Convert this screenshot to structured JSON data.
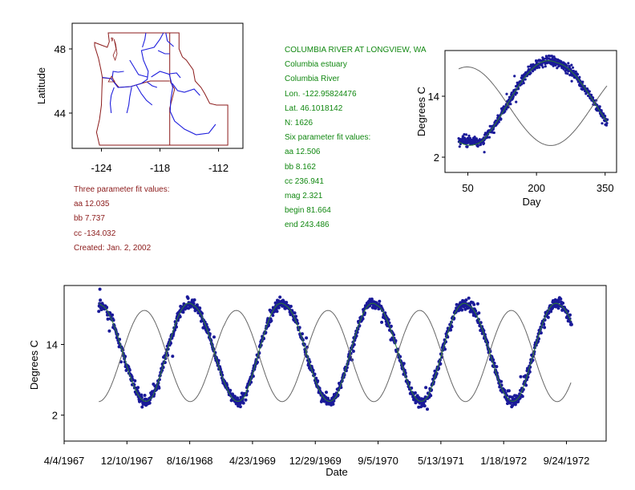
{
  "site_info": {
    "title": "COLUMBIA RIVER AT LONGVIEW, WA",
    "area": "Columbia estuary",
    "river": "Columbia River",
    "lon": "Lon. -122.95824476",
    "lat": "Lat. 46.1018142",
    "n": "N: 1626"
  },
  "six_param": {
    "header": "Six parameter fit values:",
    "aa": "aa 12.506",
    "bb": "bb 8.162",
    "cc": "cc 236.941",
    "mag": "mag 2.321",
    "begin": "begin 81.664",
    "end": "end 243.486"
  },
  "three_param": {
    "header": "Three parameter fit values:",
    "aa": "aa 12.035",
    "bb": "bb 7.737",
    "cc": "cc -134.032",
    "created": "Created:   Jan. 2, 2002"
  },
  "colors": {
    "points": "#1a1a99",
    "fit_green": "#2e7d32",
    "fit_gray": "#666666",
    "map_boundary": "#8b1a1a",
    "river": "#1f1fdd",
    "green_text": "#118811",
    "red_text": "#8b1a1a"
  },
  "chart_data": [
    {
      "id": "map",
      "type": "scatter",
      "xlabel": "",
      "ylabel": "Latitude",
      "xlim": [
        -127,
        -109.5
      ],
      "ylim": [
        41.8,
        49.6
      ],
      "xticks": [
        -124,
        -118,
        -112
      ],
      "xtick_labels": [
        "-124",
        "-118",
        "-112"
      ],
      "yticks": [
        44,
        48
      ],
      "ytick_labels": [
        "44",
        "48"
      ],
      "site_marker": {
        "lon": -122.96,
        "lat": 46.1
      }
    },
    {
      "id": "seasonal",
      "type": "scatter",
      "xlabel": "Day",
      "ylabel": "Degrees C",
      "xlim": [
        0,
        375
      ],
      "ylim": [
        -1,
        23
      ],
      "xticks": [
        50,
        200,
        350
      ],
      "xtick_labels": [
        "50",
        "200",
        "350"
      ],
      "yticks": [
        2,
        14
      ],
      "ytick_labels": [
        "2",
        "14"
      ],
      "series": [
        {
          "name": "observations",
          "kind": "points"
        },
        {
          "name": "six parameter fit",
          "kind": "line",
          "aa": 12.506,
          "bb": 8.162,
          "cc": 236.941,
          "mag": 2.321,
          "begin": 81.664,
          "end": 243.486
        },
        {
          "name": "three parameter fit",
          "kind": "line",
          "aa": 12.035,
          "bb": 7.737,
          "cc": -134.032
        }
      ]
    },
    {
      "id": "timeseries",
      "type": "line",
      "xlabel": "Date",
      "ylabel": "Degrees C",
      "x_start": "1967-04-04",
      "x_end": "1973-03-01",
      "ylim": [
        -2.4,
        24
      ],
      "yticks": [
        2,
        14
      ],
      "ytick_labels": [
        "2",
        "14"
      ],
      "xtick_dates": [
        "1967-04-04",
        "1967-12-10",
        "1968-08-16",
        "1969-04-23",
        "1969-12-29",
        "1970-09-05",
        "1971-05-13",
        "1972-01-18",
        "1972-09-24"
      ],
      "xtick_labels": [
        "4/4/1967",
        "12/10/1967",
        "8/16/1968",
        "4/23/1969",
        "12/29/1969",
        "9/5/1970",
        "5/13/1971",
        "1/18/1972",
        "9/24/1972"
      ],
      "data_start": "1967-08-20",
      "data_end": "1972-10-15",
      "series": [
        {
          "name": "observations",
          "kind": "points"
        },
        {
          "name": "six parameter fit",
          "kind": "line"
        },
        {
          "name": "three parameter fit",
          "kind": "line"
        }
      ]
    }
  ]
}
